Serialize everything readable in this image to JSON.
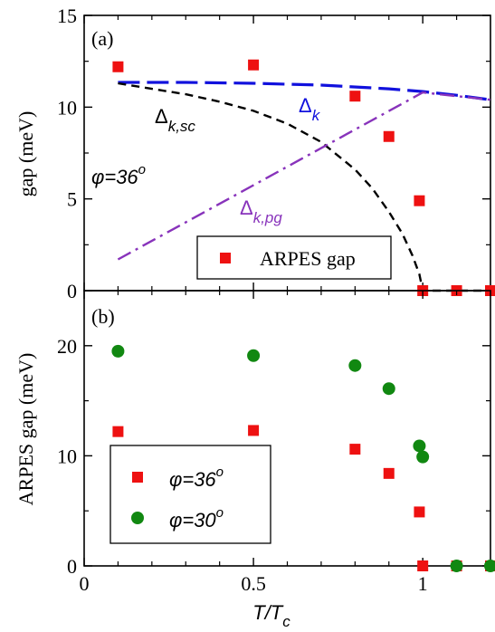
{
  "chart_data": [
    {
      "type": "scatter",
      "panel_label": "(a)",
      "ylabel": "gap (meV)",
      "xlim": [
        0,
        1.2
      ],
      "ylim": [
        0,
        15
      ],
      "x_ticks": [
        "0",
        "0.5",
        "1"
      ],
      "y_ticks": [
        "0",
        "5",
        "10",
        "15"
      ],
      "phi_text": "φ=36",
      "phi_sup": "o",
      "series": [
        {
          "name": "ARPES gap",
          "kind": "markers",
          "marker": "square",
          "color": "#ee1111",
          "x": [
            0.1,
            0.5,
            0.8,
            0.9,
            0.99,
            1.0,
            1.1,
            1.2
          ],
          "y": [
            12.2,
            12.3,
            10.6,
            8.4,
            4.9,
            0,
            0,
            0
          ]
        },
        {
          "label_main": "Δ",
          "label_sub": "k",
          "kind": "line",
          "dash": "long",
          "color": "#1111dd",
          "x": [
            0.1,
            0.3,
            0.5,
            0.7,
            0.9,
            1.0,
            1.1,
            1.2
          ],
          "y": [
            11.35,
            11.35,
            11.3,
            11.2,
            11.0,
            10.85,
            10.65,
            10.4
          ]
        },
        {
          "label_main": "Δ",
          "label_sub": "k,sc",
          "kind": "line",
          "dash": "short",
          "color": "#000000",
          "x": [
            0.1,
            0.2,
            0.3,
            0.4,
            0.5,
            0.6,
            0.7,
            0.8,
            0.85,
            0.9,
            0.94,
            0.97,
            0.99,
            1.0,
            1.1,
            1.2
          ],
          "y": [
            11.3,
            11.0,
            10.7,
            10.3,
            9.8,
            9.1,
            8.1,
            6.6,
            5.6,
            4.3,
            3.1,
            1.9,
            0.9,
            0,
            0,
            0
          ]
        },
        {
          "label_main": "Δ",
          "label_sub": "k,pg",
          "kind": "line",
          "dash": "dashdot",
          "color": "#8833bb",
          "x": [
            0.1,
            1.0,
            1.2
          ],
          "y": [
            1.7,
            10.8,
            10.4
          ]
        }
      ],
      "legend": {
        "position": "bottom-right",
        "entries": [
          "ARPES gap"
        ]
      }
    },
    {
      "type": "scatter",
      "panel_label": "(b)",
      "xlabel_main": "T/T",
      "xlabel_sub": "c",
      "ylabel": "ARPES gap (meV)",
      "xlim": [
        0,
        1.2
      ],
      "ylim": [
        0,
        25
      ],
      "x_ticks": [
        "0",
        "0.5",
        "1"
      ],
      "y_ticks": [
        "0",
        "10",
        "20"
      ],
      "series": [
        {
          "name_main": "φ=36",
          "name_sup": "o",
          "marker": "square",
          "color": "#ee1111",
          "x": [
            0.1,
            0.5,
            0.8,
            0.9,
            0.99,
            1.0,
            1.1,
            1.2
          ],
          "y": [
            12.2,
            12.3,
            10.6,
            8.4,
            4.9,
            0,
            0,
            0
          ]
        },
        {
          "name_main": "φ=30",
          "name_sup": "o",
          "marker": "circle",
          "color": "#118811",
          "x": [
            0.1,
            0.5,
            0.8,
            0.9,
            0.99,
            1.0,
            1.1,
            1.2
          ],
          "y": [
            19.5,
            19.1,
            18.2,
            16.1,
            10.9,
            9.9,
            0,
            0
          ]
        }
      ],
      "legend": {
        "position": "bottom-left"
      }
    }
  ]
}
